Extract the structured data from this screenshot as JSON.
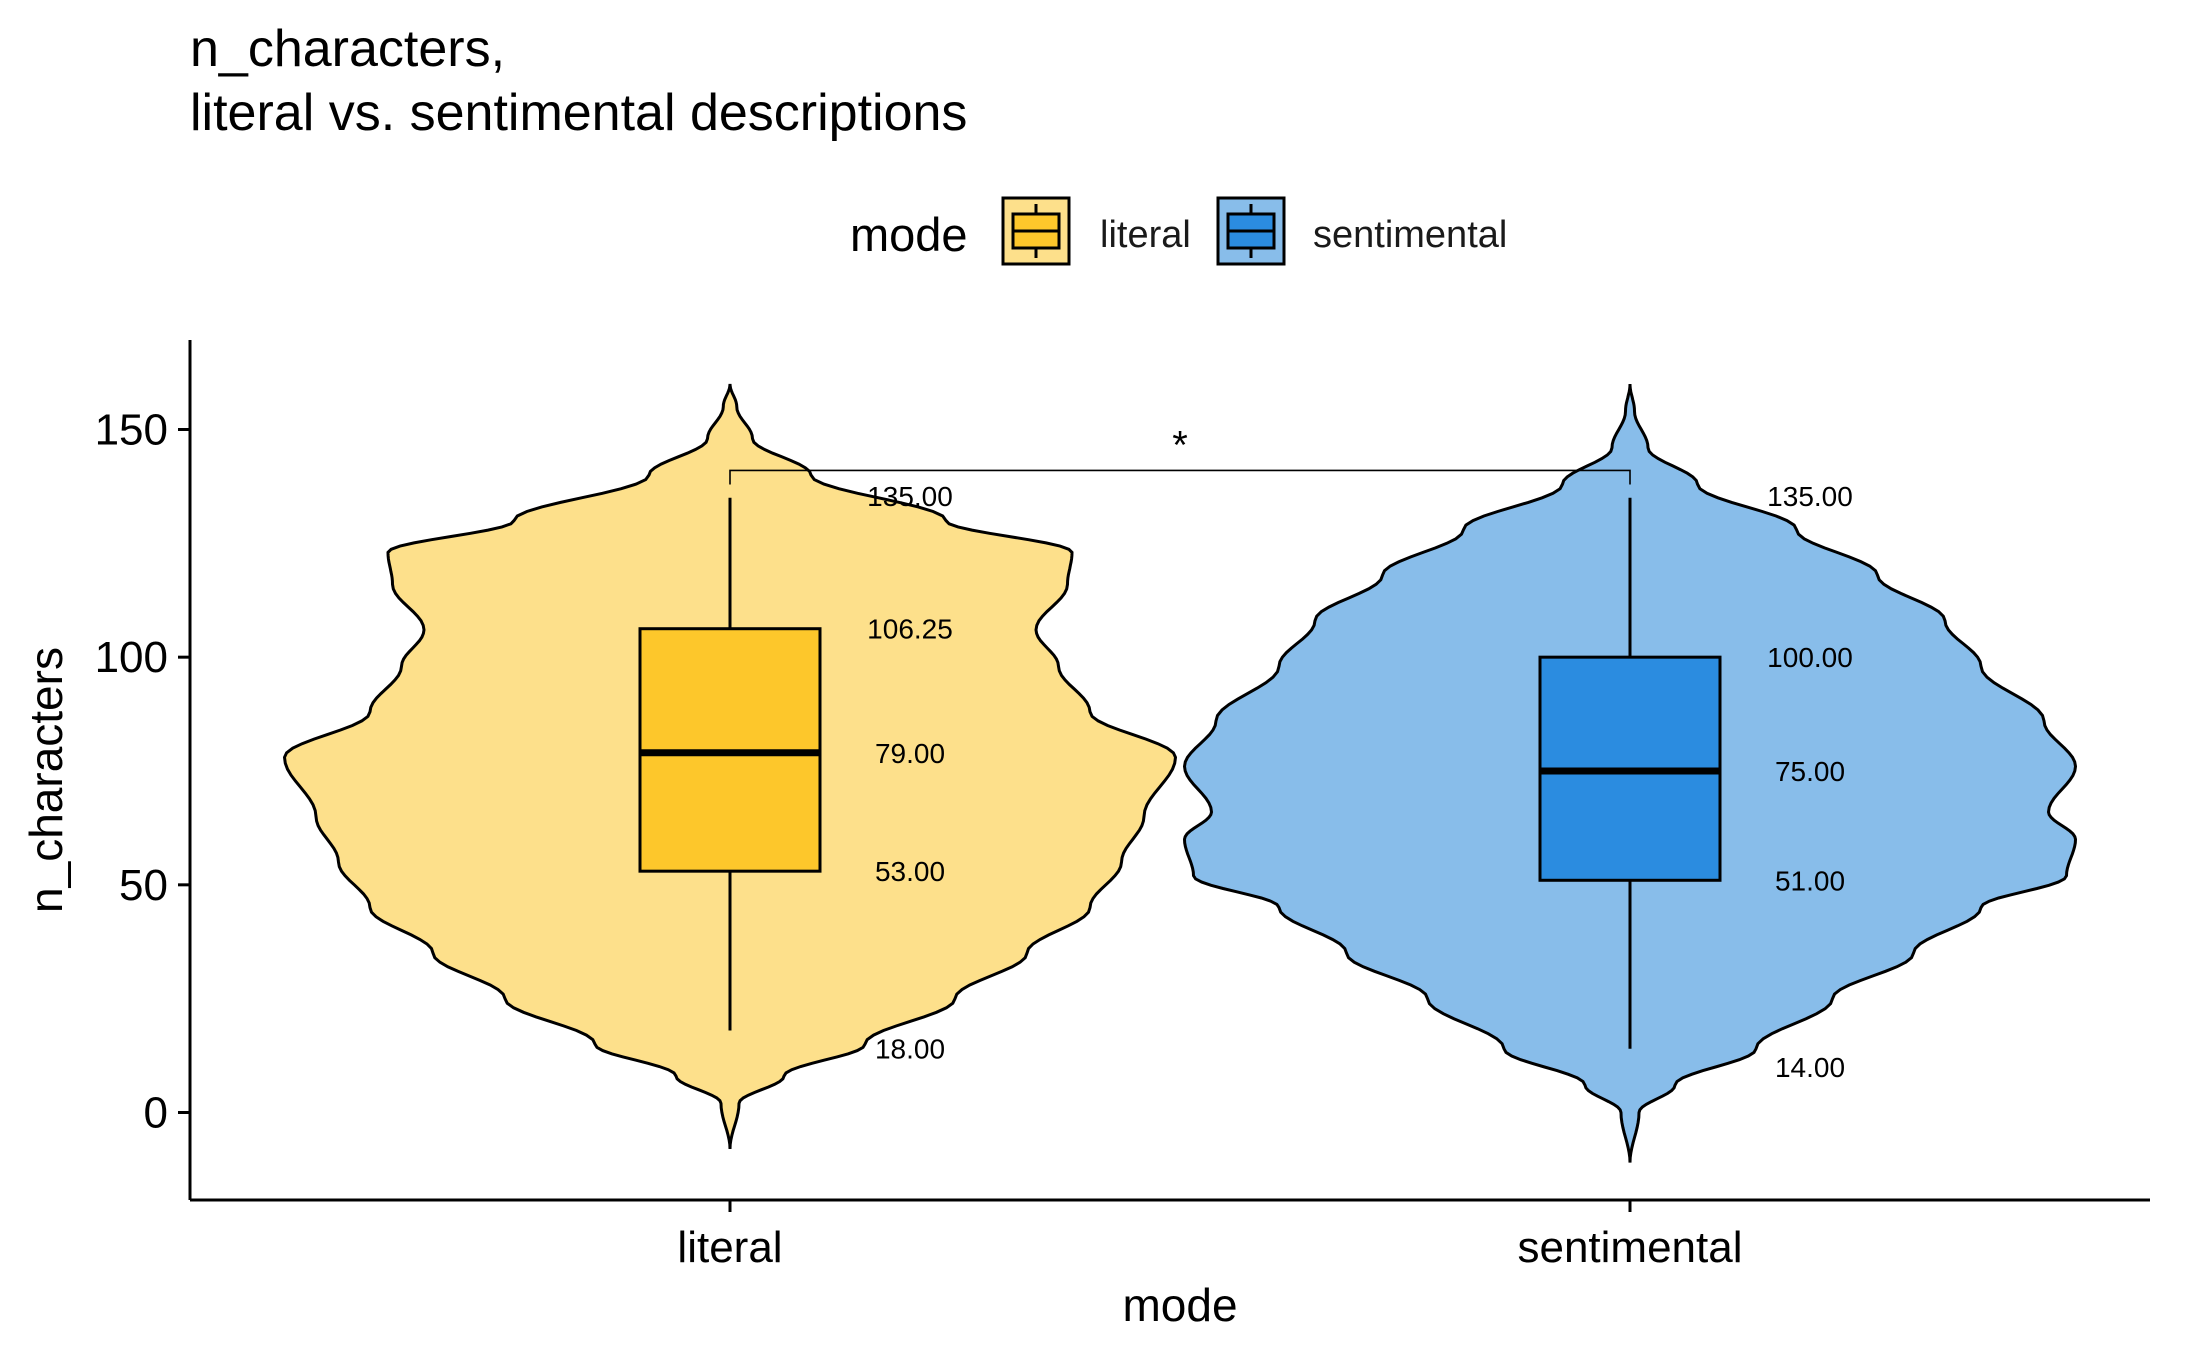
{
  "chart_data": {
    "type": "violin",
    "title_lines": [
      "n_characters,",
      "literal vs. sentimental descriptions"
    ],
    "xlabel": "mode",
    "ylabel": "n_characters",
    "ylim": [
      -19,
      168
    ],
    "y_ticks": [
      0,
      50,
      100,
      150
    ],
    "legend": {
      "title": "mode",
      "placement": "top",
      "entries": [
        "literal",
        "sentimental"
      ]
    },
    "categories": [
      "literal",
      "sentimental"
    ],
    "series": [
      {
        "name": "literal",
        "violin_fill": "#fde08b",
        "box_fill": "#fdc72b",
        "whisker_low": 18,
        "q1": 53,
        "median": 79,
        "q3": 106.25,
        "whisker_high": 135,
        "labels": [
          "135.00",
          "106.25",
          "79.00",
          "53.00",
          "18.00"
        ],
        "y_min": -8,
        "y_max": 160,
        "density": [
          [
            -8,
            0.0
          ],
          [
            2,
            0.02
          ],
          [
            8,
            0.12
          ],
          [
            15,
            0.3
          ],
          [
            25,
            0.5
          ],
          [
            35,
            0.66
          ],
          [
            45,
            0.8
          ],
          [
            55,
            0.87
          ],
          [
            65,
            0.92
          ],
          [
            78,
            0.99
          ],
          [
            88,
            0.8
          ],
          [
            98,
            0.73
          ],
          [
            106,
            0.68
          ],
          [
            116,
            0.75
          ],
          [
            123,
            0.76
          ],
          [
            130,
            0.48
          ],
          [
            140,
            0.18
          ],
          [
            148,
            0.05
          ],
          [
            155,
            0.015
          ],
          [
            160,
            0.0
          ]
        ]
      },
      {
        "name": "sentimental",
        "violin_fill": "#88bdea",
        "box_fill": "#2b8ce0",
        "whisker_low": 14,
        "q1": 51,
        "median": 75,
        "q3": 100,
        "whisker_high": 135,
        "labels": [
          "135.00",
          "100.00",
          "75.00",
          "51.00",
          "14.00"
        ],
        "y_min": -11,
        "y_max": 160,
        "density": [
          [
            -11,
            0.0
          ],
          [
            0,
            0.02
          ],
          [
            6,
            0.1
          ],
          [
            14,
            0.28
          ],
          [
            25,
            0.45
          ],
          [
            35,
            0.63
          ],
          [
            45,
            0.78
          ],
          [
            52,
            0.97
          ],
          [
            60,
            0.99
          ],
          [
            66,
            0.93
          ],
          [
            76,
            0.99
          ],
          [
            86,
            0.92
          ],
          [
            98,
            0.78
          ],
          [
            108,
            0.7
          ],
          [
            118,
            0.55
          ],
          [
            128,
            0.37
          ],
          [
            138,
            0.15
          ],
          [
            146,
            0.04
          ],
          [
            154,
            0.01
          ],
          [
            160,
            0.0
          ]
        ]
      }
    ],
    "significance": {
      "between": [
        "literal",
        "sentimental"
      ],
      "label": "*",
      "bracket_y": 141
    }
  }
}
